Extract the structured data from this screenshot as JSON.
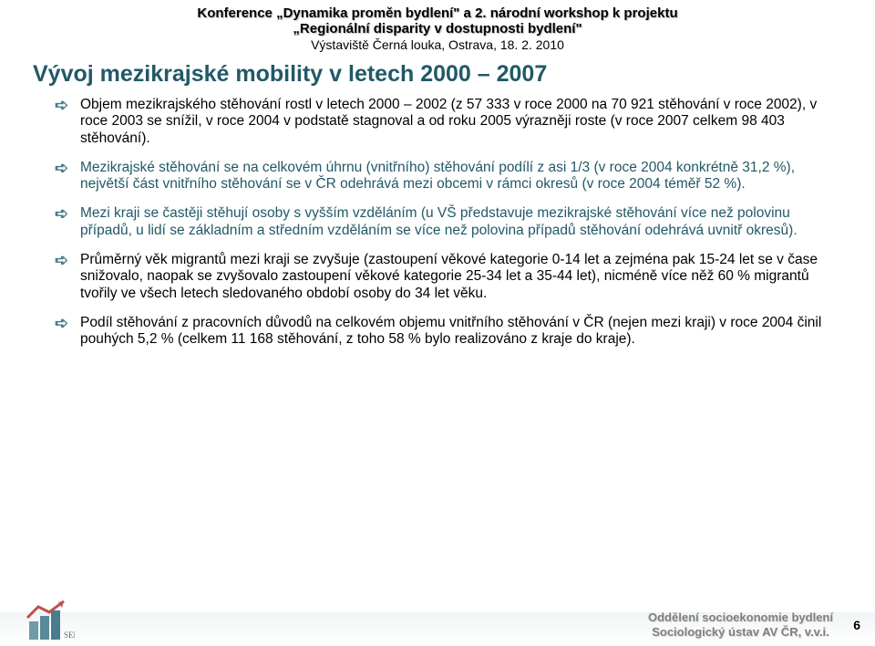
{
  "header": {
    "line1": "Konference „Dynamika proměn bydlení\" a 2. národní workshop k projektu",
    "line2": "„Regionální disparity v dostupnosti bydlení\"",
    "sub": "Výstaviště Černá louka, Ostrava, 18. 2. 2010"
  },
  "title": "Vývoj mezikrajské mobility v letech 2000 – 2007",
  "bullets": [
    {
      "text": "Objem mezikrajského stěhování rostl v letech 2000 – 2002 (z 57 333 v roce 2000 na 70 921 stěhování v roce 2002), v roce 2003 se snížil, v roce 2004 v podstatě stagnoval a od roku 2005 výrazněji roste (v roce 2007 celkem 98 403 stěhování).",
      "highlight": false
    },
    {
      "text": "Mezikrajské stěhování se na celkovém úhrnu (vnitřního) stěhování podílí z asi 1/3 (v roce 2004 konkrétně 31,2 %), největší část vnitřního stěhování se v ČR odehrává mezi obcemi v rámci okresů (v roce 2004 téměř 52 %).",
      "highlight": true
    },
    {
      "text": "Mezi kraji se častěji stěhují osoby s vyšším vzděláním (u VŠ představuje mezikrajské stěhování více než polovinu případů, u lidí se základním a středním vzděláním se více než polovina případů stěhování odehrává uvnitř okresů).",
      "highlight": true
    },
    {
      "text": "Průměrný věk migrantů mezi kraji se zvyšuje (zastoupení věkové kategorie 0-14 let a zejména pak 15-24 let se v čase snižovalo, naopak se zvyšovalo zastoupení věkové kategorie 25-34 let a 35-44 let), nicméně více něž 60 % migrantů tvořily ve všech letech sledovaného období osoby do 34 let věku.",
      "highlight": false
    },
    {
      "text": "Podíl stěhování z pracovních důvodů na celkovém objemu vnitřního stěhování v ČR (nejen mezi kraji) v roce 2004 činil pouhých 5,2 % (celkem 11 168 stěhování, z toho 58 % bylo realizováno z kraje do kraje).",
      "highlight": false
    }
  ],
  "footer": {
    "line1": "Oddělení socioekonomie bydlení",
    "line2": "Sociologický ústav AV ČR, v.v.i.",
    "page": "6"
  },
  "colors": {
    "title": "#215967",
    "marker": "#4a7c8c",
    "footer_text": "#808080",
    "background": "#ffffff"
  },
  "logo": {
    "bars": [
      "#6e9ba8",
      "#5a8b9a",
      "#4a7c8c"
    ],
    "roof": "#c0504d",
    "label": "SEB"
  }
}
